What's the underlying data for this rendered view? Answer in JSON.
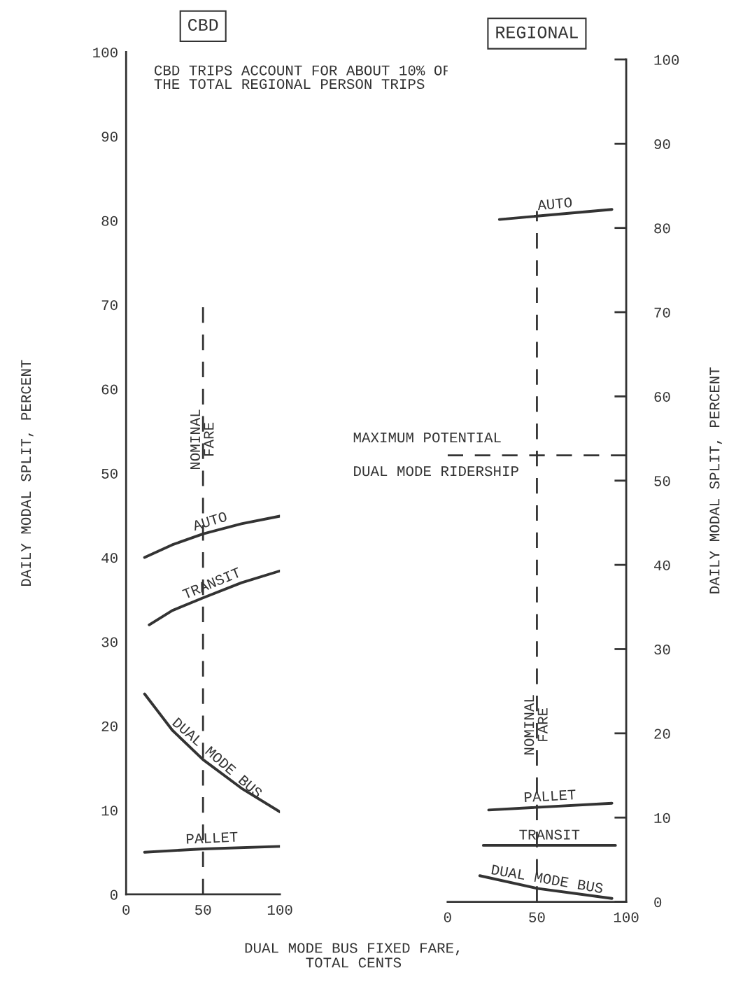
{
  "chart_data": [
    {
      "type": "line",
      "title": "CBD",
      "xlabel": "DUAL MODE BUS FIXED FARE,\nTOTAL CENTS",
      "ylabel": "DAILY MODAL SPLIT, PERCENT",
      "xlim": [
        0,
        100
      ],
      "xticks": [
        0,
        50,
        100
      ],
      "ylim": [
        0,
        100
      ],
      "yticks": [
        0,
        10,
        20,
        30,
        40,
        50,
        60,
        70,
        80,
        90,
        100
      ],
      "annotations": [
        "CBD TRIPS ACCOUNT FOR ABOUT 10% OF\nTHE TOTAL REGIONAL PERSON TRIPS"
      ],
      "ref_lines": [
        {
          "axis": "x",
          "value": 50,
          "label": "NOMINAL FARE",
          "line_style": "dashed"
        }
      ],
      "grid": false,
      "legend": false,
      "marker": "none",
      "line_style": "solid",
      "series": [
        {
          "name": "AUTO",
          "color": "#333333",
          "x": [
            12,
            30,
            50,
            75,
            100
          ],
          "values": [
            40.0,
            41.5,
            42.8,
            44.0,
            44.9
          ]
        },
        {
          "name": "TRANSIT",
          "color": "#333333",
          "x": [
            15,
            30,
            50,
            75,
            100
          ],
          "values": [
            32.0,
            33.7,
            35.2,
            37.0,
            38.4
          ]
        },
        {
          "name": "DUAL MODE BUS",
          "color": "#333333",
          "x": [
            12,
            30,
            50,
            75,
            100
          ],
          "values": [
            23.8,
            19.5,
            16.0,
            12.6,
            9.8
          ]
        },
        {
          "name": "PALLET",
          "color": "#333333",
          "x": [
            12,
            50,
            100
          ],
          "values": [
            5.0,
            5.4,
            5.7
          ]
        }
      ]
    },
    {
      "type": "line",
      "title": "REGIONAL",
      "y2label": "DAILY MODAL SPLIT, PERCENT",
      "xlim": [
        0,
        100
      ],
      "xticks": [
        0,
        50,
        100
      ],
      "y2lim": [
        0,
        100
      ],
      "y2ticks": [
        0,
        10,
        20,
        30,
        40,
        50,
        60,
        70,
        80,
        90,
        100
      ],
      "ref_lines": [
        {
          "axis": "x",
          "value": 50,
          "label": "NOMINAL FARE",
          "line_style": "dashed"
        },
        {
          "axis": "y2",
          "value": 53,
          "label": "MAXIMUM POTENTIAL\nDUAL MODE RIDERSHIP",
          "line_style": "dashed"
        }
      ],
      "grid": false,
      "legend": false,
      "marker": "none",
      "line_style": "solid",
      "series": [
        {
          "name": "AUTO",
          "color": "#333333",
          "axis": "y2",
          "x": [
            29,
            92
          ],
          "values": [
            81.0,
            82.2
          ]
        },
        {
          "name": "PALLET",
          "color": "#333333",
          "axis": "y2",
          "x": [
            23,
            92
          ],
          "values": [
            10.9,
            11.7
          ]
        },
        {
          "name": "TRANSIT",
          "color": "#333333",
          "axis": "y2",
          "x": [
            20,
            94
          ],
          "values": [
            6.7,
            6.7
          ]
        },
        {
          "name": "DUAL MODE BUS",
          "color": "#333333",
          "axis": "y2",
          "x": [
            18,
            50,
            92
          ],
          "values": [
            3.1,
            1.6,
            0.4
          ]
        }
      ]
    }
  ]
}
